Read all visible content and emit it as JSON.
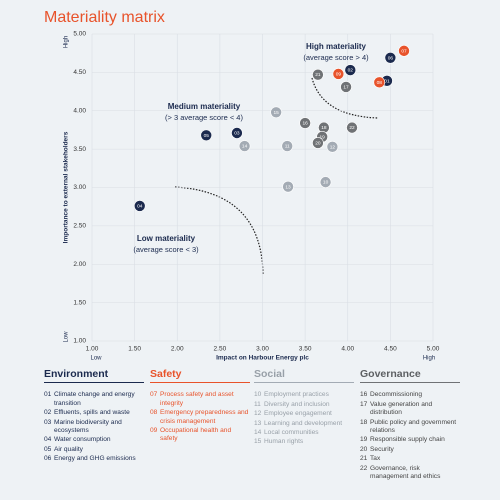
{
  "chart_data": {
    "type": "scatter",
    "title": "Materiality matrix",
    "x_label": "Impact on Harbour Energy plc",
    "y_label": "Importance to external stakeholders",
    "x_low": "Low",
    "x_high": "High",
    "y_low": "Low",
    "y_high": "High",
    "xlim": [
      1,
      5
    ],
    "ylim": [
      1,
      5
    ],
    "xticks": [
      {
        "value": 1,
        "label": "1.00"
      },
      {
        "value": 1.5,
        "label": "1.50"
      },
      {
        "value": 2,
        "label": "2.00"
      },
      {
        "value": 2.5,
        "label": "2.50"
      },
      {
        "value": 3,
        "label": "3.00"
      },
      {
        "value": 3.5,
        "label": "3.50"
      },
      {
        "value": 4,
        "label": "4.00"
      },
      {
        "value": 4.5,
        "label": "4.50"
      },
      {
        "value": 5,
        "label": "5.00"
      }
    ],
    "yticks": [
      {
        "value": 1,
        "label": "1.00"
      },
      {
        "value": 1.5,
        "label": "1.50"
      },
      {
        "value": 2,
        "label": "2.00"
      },
      {
        "value": 2.5,
        "label": "2.50"
      },
      {
        "value": 3,
        "label": "3.00"
      },
      {
        "value": 3.5,
        "label": "3.50"
      },
      {
        "value": 4,
        "label": "4.00"
      },
      {
        "value": 4.5,
        "label": "4.50"
      },
      {
        "value": 5,
        "label": "5.00"
      }
    ],
    "grid": true,
    "annotations": [
      {
        "title": "High materiality",
        "subtitle": "(average score > 4)"
      },
      {
        "title": "Medium materiality",
        "subtitle": "(> 3 average score < 4)"
      },
      {
        "title": "Low materiality",
        "subtitle": "(average score < 3)"
      }
    ],
    "series": [
      {
        "name": "Environment",
        "color": "#1b2a4e",
        "x": [
          4.46,
          4.03,
          2.7,
          1.56,
          2.34,
          4.5
        ],
        "values": [
          4.39,
          4.53,
          3.71,
          2.76,
          3.68,
          4.69
        ],
        "items": [
          {
            "id": "01",
            "text": "Climate change and energy transition"
          },
          {
            "id": "02",
            "text": "Effluents, spills and waste"
          },
          {
            "id": "03",
            "text": "Marine biodiversity and ecosystems"
          },
          {
            "id": "04",
            "text": "Water consumption"
          },
          {
            "id": "05",
            "text": "Air quality"
          },
          {
            "id": "06",
            "text": "Energy and GHG emissions"
          }
        ]
      },
      {
        "name": "Safety",
        "color": "#e8532b",
        "x": [
          4.66,
          4.37,
          3.89
        ],
        "values": [
          4.78,
          4.37,
          4.48
        ],
        "items": [
          {
            "id": "07",
            "text": "Process safety and asset integrity"
          },
          {
            "id": "08",
            "text": "Emergency preparedness and crisis management"
          },
          {
            "id": "09",
            "text": "Occupational health and safety"
          }
        ]
      },
      {
        "name": "Social",
        "color": "#a3abb4",
        "x": [
          3.74,
          3.29,
          3.82,
          3.3,
          2.79,
          3.16
        ],
        "values": [
          3.07,
          3.54,
          3.53,
          3.01,
          3.54,
          3.98
        ],
        "items": [
          {
            "id": "10",
            "text": "Employment practices"
          },
          {
            "id": "11",
            "text": "Diversity and inclusion"
          },
          {
            "id": "12",
            "text": "Employee engagement"
          },
          {
            "id": "13",
            "text": "Learning and development"
          },
          {
            "id": "14",
            "text": "Local communities"
          },
          {
            "id": "15",
            "text": "Human rights"
          }
        ]
      },
      {
        "name": "Governance",
        "color": "#6f7275",
        "x": [
          3.5,
          3.98,
          3.72,
          3.7,
          3.65,
          3.65,
          4.05
        ],
        "values": [
          3.84,
          4.31,
          3.78,
          3.66,
          3.58,
          4.47,
          3.78
        ],
        "items": [
          {
            "id": "16",
            "text": "Decommissioning"
          },
          {
            "id": "17",
            "text": "Value generation and distribution"
          },
          {
            "id": "18",
            "text": "Public policy and government relations"
          },
          {
            "id": "19",
            "text": "Responsible supply chain"
          },
          {
            "id": "20",
            "text": "Security"
          },
          {
            "id": "21",
            "text": "Tax"
          },
          {
            "id": "22",
            "text": "Governance, risk management and ethics"
          }
        ]
      }
    ]
  }
}
